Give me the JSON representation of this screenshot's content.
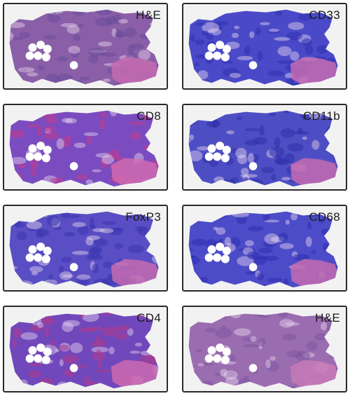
{
  "panels": [
    {
      "label": "H&E",
      "tissue": "#8a5fa8",
      "tissue_dark": "#6a4a9a",
      "stroma": "#c46bb0"
    },
    {
      "label": "CD33",
      "tissue": "#4a4ac8",
      "tissue_dark": "#2f2fb0",
      "stroma": "#c46bb0"
    },
    {
      "label": "CD8",
      "tissue": "#7a4cc0",
      "tissue_dark": "#c43a8a",
      "stroma": "#d06ab0"
    },
    {
      "label": "CD11b",
      "tissue": "#4e4ec4",
      "tissue_dark": "#3030a8",
      "stroma": "#c56bb0"
    },
    {
      "label": "FoxP3",
      "tissue": "#5a4ec4",
      "tissue_dark": "#3a34b0",
      "stroma": "#c46bb0"
    },
    {
      "label": "CD68",
      "tissue": "#4c4cc8",
      "tissue_dark": "#2e2eb0",
      "stroma": "#c46bb0"
    },
    {
      "label": "CD4",
      "tissue": "#7048bc",
      "tissue_dark": "#b03a88",
      "stroma": "#cc6ab0"
    },
    {
      "label": "H&E",
      "tissue": "#9a6cb0",
      "tissue_dark": "#7e58a2",
      "stroma": "#c87ab8"
    }
  ]
}
